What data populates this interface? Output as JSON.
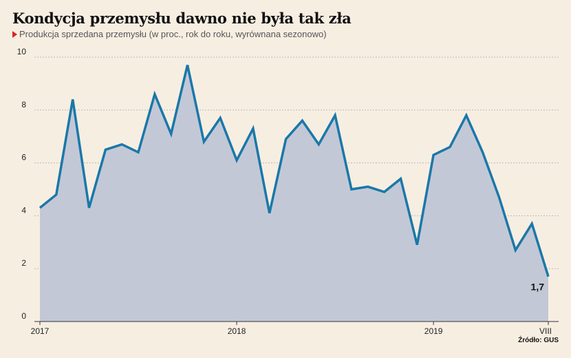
{
  "header": {
    "title": "Kondycja przemysłu dawno nie była tak zła",
    "subtitle": "Produkcja sprzedana przemysłu (w proc., rok do roku, wyrównana sezonowo)"
  },
  "footer": {
    "source": "Źródło: GUS"
  },
  "colors": {
    "background": "#f7eee2",
    "line": "#1a78a8",
    "area": "#c3c8d7",
    "grid": "#b8b8b8",
    "marker": "#d9262a"
  },
  "chart_data": {
    "type": "area",
    "title": "Kondycja przemysłu dawno nie była tak zła",
    "subtitle": "Produkcja sprzedana przemysłu (w proc., rok do roku, wyrównana sezonowo)",
    "xlabel": "",
    "ylabel": "",
    "x_ticks": [
      "2017",
      "2018",
      "2019",
      "VIII"
    ],
    "y_ticks": [
      "0",
      "2",
      "4",
      "6",
      "8",
      "10"
    ],
    "ylim": [
      0,
      10
    ],
    "grid": "horizontal dashed",
    "series": [
      {
        "values": [
          4.3,
          4.8,
          8.4,
          4.3,
          6.5,
          6.7,
          6.4,
          8.6,
          7.1,
          9.7,
          6.8,
          7.7,
          6.1,
          7.3,
          4.1,
          6.9,
          7.6,
          6.7,
          7.8,
          5.0,
          5.1,
          4.9,
          5.4,
          2.9,
          6.3,
          6.6,
          7.8,
          6.4,
          4.7,
          2.7,
          3.7,
          1.7
        ]
      }
    ],
    "annotations": [
      {
        "text": "1,7",
        "point": "last"
      }
    ]
  }
}
